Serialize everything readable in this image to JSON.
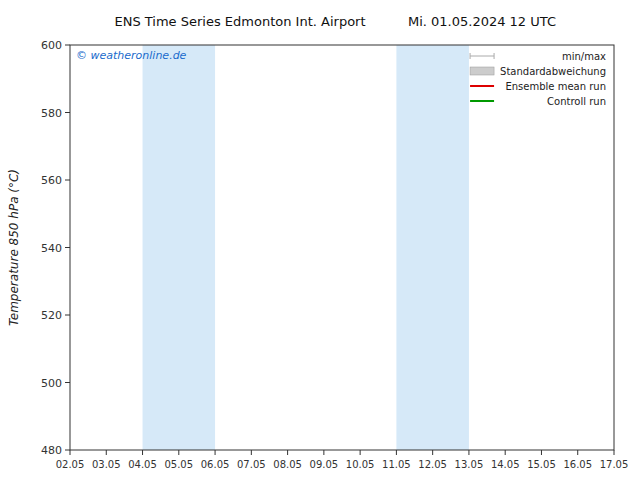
{
  "chart_data": {
    "type": "line",
    "title": "ENS Time Series Edmonton Int. Airport",
    "subtitle": "Mi. 01.05.2024 12 UTC",
    "y_label": "Temperature 850 hPa (°C)",
    "categories": [
      "02.05",
      "03.05",
      "04.05",
      "05.05",
      "06.05",
      "07.05",
      "08.05",
      "09.05",
      "10.05",
      "11.05",
      "12.05",
      "13.05",
      "14.05",
      "15.05",
      "16.05",
      "17.05"
    ],
    "xlim": [
      0,
      15
    ],
    "ylim": [
      480,
      600
    ],
    "yticks": [
      480,
      500,
      520,
      540,
      560,
      580,
      600
    ],
    "bands": [
      {
        "from": 2,
        "to": 4,
        "color": "#d6e9f8"
      },
      {
        "from": 9,
        "to": 11,
        "color": "#d6e9f8"
      }
    ],
    "annotations": [
      {
        "text": "© weatheronline.de",
        "color": "#1a6bcc"
      }
    ],
    "series": [
      {
        "name": "min/max",
        "color": "#aaaaaa",
        "type": "range"
      },
      {
        "name": "Standardabweichung",
        "color": "#cccccc",
        "type": "area"
      },
      {
        "name": "Ensemble mean run",
        "color": "#dd0000",
        "type": "line"
      },
      {
        "name": "Controll run",
        "color": "#009900",
        "type": "line"
      }
    ],
    "legend": "upper right",
    "grid": false
  }
}
